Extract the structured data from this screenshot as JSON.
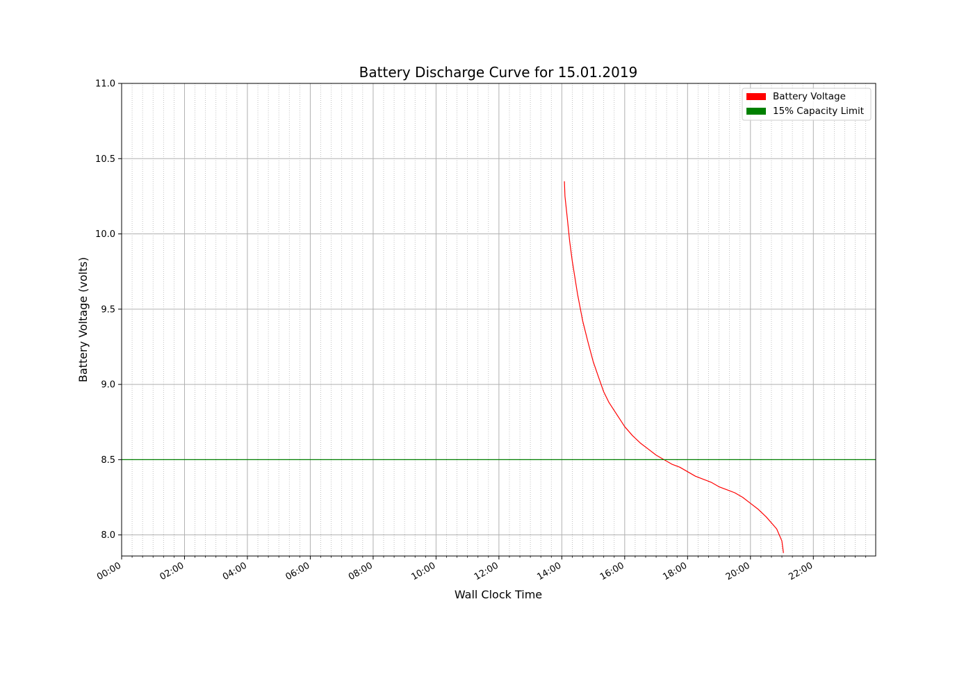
{
  "chart_data": {
    "type": "line",
    "title": "Battery Discharge Curve for 15.01.2019",
    "xlabel": "Wall Clock Time",
    "ylabel": "Battery Voltage (volts)",
    "xlim": [
      "00:00",
      "23:59"
    ],
    "ylim": [
      7.86,
      11.0
    ],
    "x_ticks": [
      "00:00",
      "02:00",
      "04:00",
      "06:00",
      "08:00",
      "10:00",
      "12:00",
      "14:00",
      "16:00",
      "18:00",
      "20:00",
      "22:00"
    ],
    "y_ticks": [
      "8.0",
      "8.5",
      "9.0",
      "9.5",
      "10.0",
      "10.5",
      "11.0"
    ],
    "grid": true,
    "legend_position": "top-right",
    "legend": [
      {
        "label": "Battery Voltage",
        "color": "#ff0000"
      },
      {
        "label": "15% Capacity Limit",
        "color": "#008000"
      }
    ],
    "series": [
      {
        "name": "Battery Voltage",
        "color": "#ff0000",
        "x": [
          "14:05",
          "14:06",
          "14:10",
          "14:15",
          "14:20",
          "14:30",
          "14:40",
          "14:50",
          "15:00",
          "15:10",
          "15:20",
          "15:30",
          "15:45",
          "16:00",
          "16:15",
          "16:30",
          "16:45",
          "17:00",
          "17:15",
          "17:30",
          "17:45",
          "18:00",
          "18:15",
          "18:30",
          "18:45",
          "19:00",
          "19:15",
          "19:30",
          "19:45",
          "20:00",
          "20:15",
          "20:30",
          "20:40",
          "20:50",
          "20:55",
          "21:00",
          "21:03"
        ],
        "y": [
          10.35,
          10.25,
          10.12,
          9.95,
          9.82,
          9.6,
          9.42,
          9.28,
          9.15,
          9.05,
          8.95,
          8.88,
          8.8,
          8.72,
          8.66,
          8.61,
          8.57,
          8.53,
          8.5,
          8.47,
          8.45,
          8.42,
          8.39,
          8.37,
          8.35,
          8.32,
          8.3,
          8.28,
          8.25,
          8.21,
          8.17,
          8.12,
          8.08,
          8.04,
          8.0,
          7.96,
          7.88
        ]
      },
      {
        "name": "15% Capacity Limit",
        "color": "#008000",
        "x": [
          "00:00",
          "23:59"
        ],
        "y": [
          8.5,
          8.5
        ]
      }
    ]
  }
}
